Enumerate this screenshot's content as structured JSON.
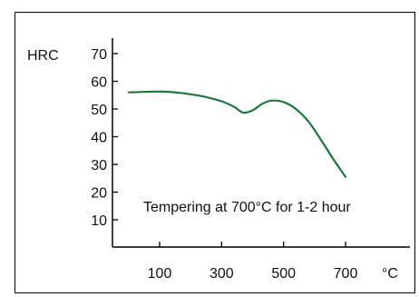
{
  "chart_data": {
    "type": "line",
    "title": "",
    "ylabel": "HRC",
    "xunit": "°C",
    "annotation": "Tempering at 700°C for 1-2 hour",
    "xlim": [
      -50,
      770
    ],
    "ylim": [
      0,
      75
    ],
    "xticks": [
      100,
      300,
      500,
      700
    ],
    "yticks": [
      10,
      20,
      30,
      40,
      50,
      60,
      70
    ],
    "grid": false,
    "series": [
      {
        "color": "#1a7a3a",
        "x": [
          0,
          100,
          150,
          200,
          250,
          300,
          340,
          370,
          400,
          430,
          460,
          500,
          540,
          580,
          620,
          660,
          700
        ],
        "y": [
          56.0,
          56.3,
          56.0,
          55.3,
          54.3,
          52.8,
          50.8,
          48.7,
          49.5,
          51.8,
          53.0,
          52.5,
          50.0,
          45.5,
          39.0,
          32.0,
          25.5
        ]
      }
    ]
  }
}
